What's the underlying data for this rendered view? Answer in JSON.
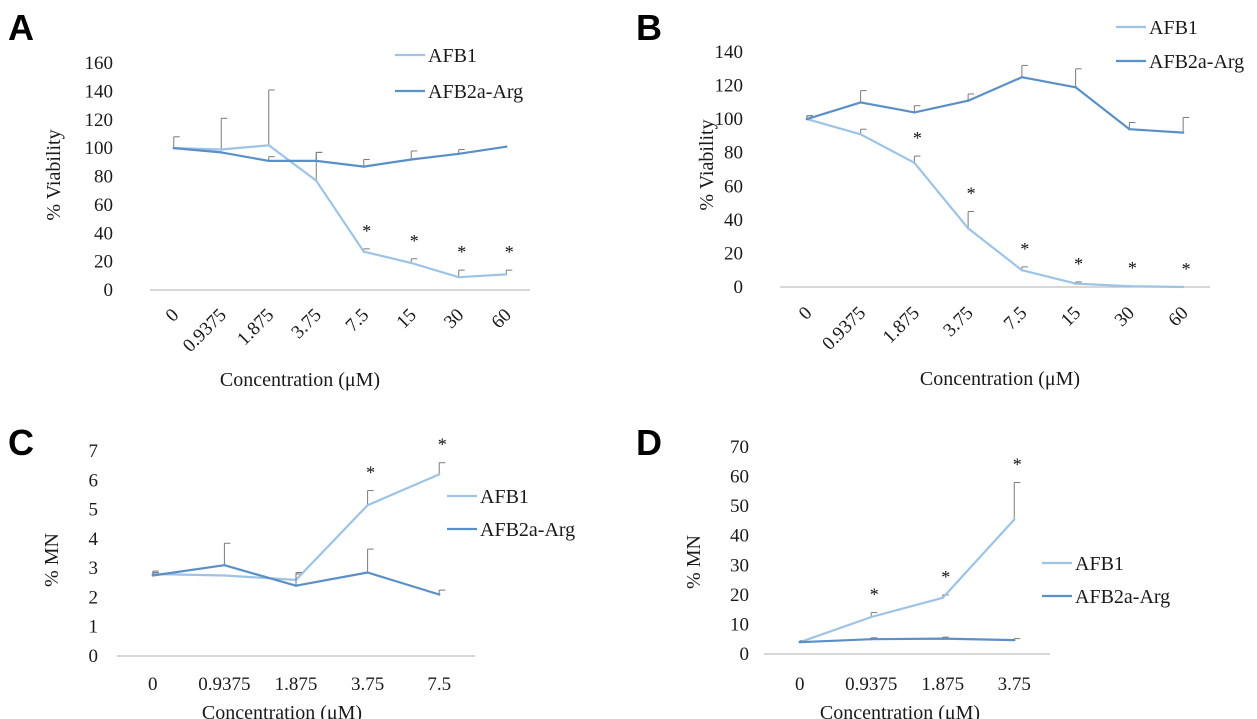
{
  "colors": {
    "AFB1": "#9dc3e6",
    "AFB2a-Arg": "#5b8fc7",
    "axis": "#bfbfbf",
    "errorbar": "#7a7a7a"
  },
  "chart_data": [
    {
      "panel": "A",
      "type": "line",
      "xlabel": "Concentration (μM)",
      "ylabel": "% Viability",
      "categories": [
        "0",
        "0.9375",
        "1.875",
        "3.75",
        "7.5",
        "15",
        "30",
        "60"
      ],
      "ylim": [
        0,
        160
      ],
      "yticks": [
        "0",
        "20",
        "40",
        "60",
        "80",
        "100",
        "120",
        "140",
        "160"
      ],
      "legend_position": "top-right",
      "series": [
        {
          "name": "AFB1",
          "values": [
            100,
            99,
            102,
            77,
            27,
            19,
            9,
            11
          ],
          "errors": [
            8,
            22,
            39,
            20,
            2,
            3,
            5,
            3
          ],
          "significant": [
            false,
            false,
            false,
            false,
            true,
            true,
            true,
            true
          ]
        },
        {
          "name": "AFB2a-Arg",
          "values": [
            100,
            97,
            91,
            91,
            87,
            92,
            96,
            101
          ],
          "errors": [
            0,
            0,
            3,
            6,
            5,
            6,
            3,
            0
          ]
        }
      ]
    },
    {
      "panel": "B",
      "type": "line",
      "xlabel": "Concentration (μM)",
      "ylabel": "% Viability",
      "categories": [
        "0",
        "0.9375",
        "1.875",
        "3.75",
        "7.5",
        "15",
        "30",
        "60"
      ],
      "ylim": [
        0,
        140
      ],
      "yticks": [
        "0",
        "20",
        "40",
        "60",
        "80",
        "100",
        "120",
        "140"
      ],
      "legend_position": "top-right",
      "series": [
        {
          "name": "AFB1",
          "values": [
            100,
            91,
            74,
            35,
            10,
            2,
            0.5,
            0
          ],
          "errors": [
            2,
            3,
            4,
            10,
            2,
            1,
            0,
            0
          ],
          "significant": [
            false,
            false,
            true,
            true,
            true,
            true,
            true,
            true
          ]
        },
        {
          "name": "AFB2a-Arg",
          "values": [
            100,
            110,
            104,
            111,
            125,
            119,
            94,
            92
          ],
          "errors": [
            2,
            7,
            4,
            4,
            7,
            11,
            4,
            9
          ]
        }
      ]
    },
    {
      "panel": "C",
      "type": "line",
      "xlabel": "Concentration (μM)",
      "ylabel": "% MN",
      "categories": [
        "0",
        "0.9375",
        "1.875",
        "3.75",
        "7.5"
      ],
      "ylim": [
        0,
        7
      ],
      "yticks": [
        "0",
        "1",
        "2",
        "3",
        "4",
        "5",
        "6",
        "7"
      ],
      "legend_position": "right",
      "series": [
        {
          "name": "AFB1",
          "values": [
            2.8,
            2.75,
            2.6,
            5.15,
            6.2
          ],
          "errors": [
            0.1,
            0,
            0.2,
            0.5,
            0.4
          ],
          "significant": [
            false,
            false,
            false,
            true,
            true
          ]
        },
        {
          "name": "AFB2a-Arg",
          "values": [
            2.75,
            3.1,
            2.4,
            2.85,
            2.1
          ],
          "errors": [
            0.1,
            0.75,
            0.45,
            0.8,
            0.15
          ]
        }
      ]
    },
    {
      "panel": "D",
      "type": "line",
      "xlabel": "Concentration (μM)",
      "ylabel": "% MN",
      "categories": [
        "0",
        "0.9375",
        "1.875",
        "3.75"
      ],
      "ylim": [
        0,
        70
      ],
      "yticks": [
        "0",
        "10",
        "20",
        "30",
        "40",
        "50",
        "60",
        "70"
      ],
      "legend_position": "right",
      "series": [
        {
          "name": "AFB1",
          "values": [
            4,
            12.5,
            19,
            45.5
          ],
          "errors": [
            0.5,
            1.5,
            1,
            12.5
          ],
          "significant": [
            false,
            true,
            true,
            true
          ]
        },
        {
          "name": "AFB2a-Arg",
          "values": [
            4,
            5,
            5.2,
            4.7
          ],
          "errors": [
            0.3,
            0.5,
            0.5,
            0.5
          ]
        }
      ]
    }
  ]
}
